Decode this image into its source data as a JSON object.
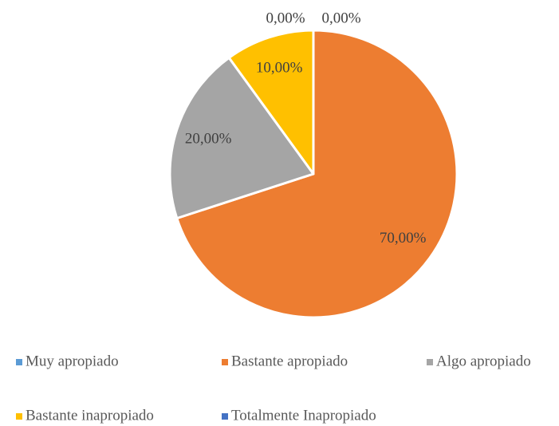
{
  "chart_data": {
    "type": "pie",
    "categories": [
      "Muy apropiado",
      "Bastante apropiado",
      "Algo apropiado",
      "Bastante inapropiado",
      "Totalmente Inapropiado"
    ],
    "values": [
      0,
      70,
      20,
      10,
      0
    ],
    "value_labels": [
      "0,00%",
      "70,00%",
      "20,00%",
      "10,00%",
      "0,00%"
    ],
    "colors": [
      "#5b9bd5",
      "#ed7d31",
      "#a5a5a5",
      "#ffc000",
      "#4472c4"
    ],
    "legend": "bottom"
  }
}
